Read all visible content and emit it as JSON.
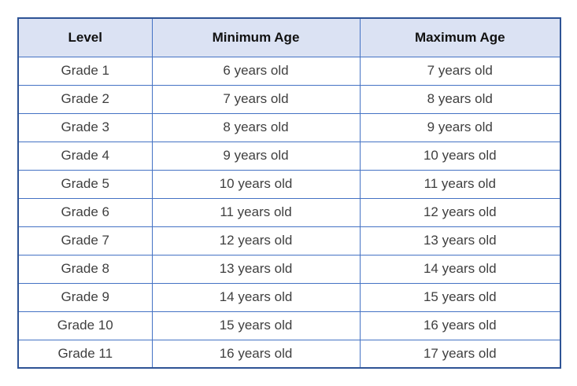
{
  "table": {
    "columns": [
      {
        "label": "Level"
      },
      {
        "label": "Minimum Age"
      },
      {
        "label": "Maximum Age"
      }
    ],
    "rows": [
      {
        "level": "Grade 1",
        "min": "6 years old",
        "max": "7 years old"
      },
      {
        "level": "Grade 2",
        "min": "7 years old",
        "max": "8 years old"
      },
      {
        "level": "Grade 3",
        "min": "8 years old",
        "max": "9 years old"
      },
      {
        "level": "Grade 4",
        "min": "9 years old",
        "max": "10 years old"
      },
      {
        "level": "Grade 5",
        "min": "10 years old",
        "max": "11 years old"
      },
      {
        "level": "Grade 6",
        "min": "11 years old",
        "max": "12 years old"
      },
      {
        "level": "Grade 7",
        "min": "12 years old",
        "max": "13 years old"
      },
      {
        "level": "Grade 8",
        "min": "13 years old",
        "max": "14 years old"
      },
      {
        "level": "Grade 9",
        "min": "14 years old",
        "max": "15 years old"
      },
      {
        "level": "Grade 10",
        "min": "15 years old",
        "max": "16 years old"
      },
      {
        "level": "Grade 11",
        "min": "16 years old",
        "max": "17 years old"
      }
    ],
    "colors": {
      "header_bg": "#dbe2f3",
      "grid_border": "#4472c4",
      "outer_border": "#2e5395",
      "header_text": "#111111",
      "body_text": "#3f3f3f"
    }
  }
}
